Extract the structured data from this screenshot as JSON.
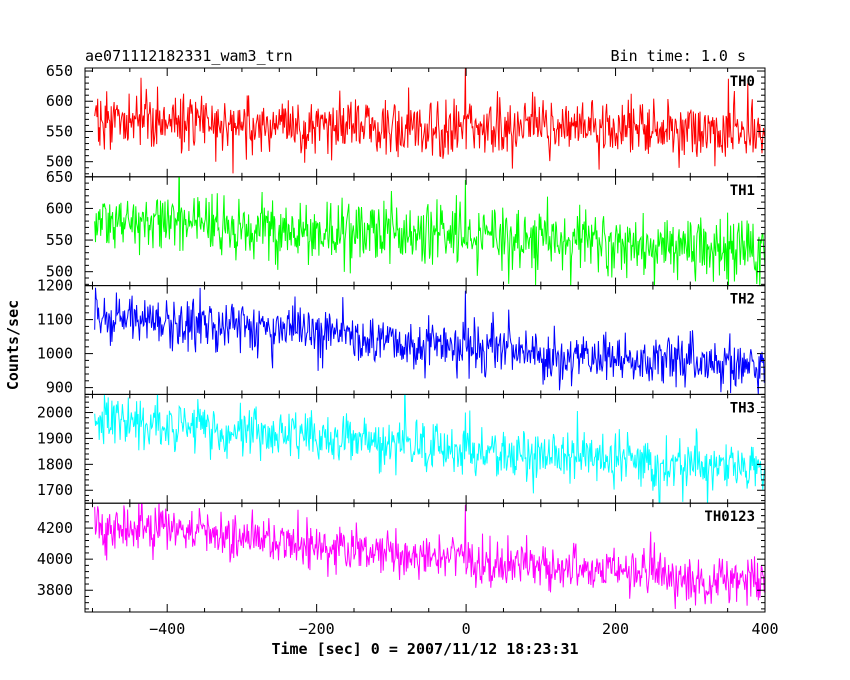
{
  "header": {
    "title": "ae071112182331_wam3_trn",
    "bin_time": "Bin time: 1.0 s"
  },
  "chart_data": {
    "type": "line",
    "title": "ae071112182331_wam3_trn",
    "subtitle": "Bin time: 1.0 s",
    "xlabel": "Time [sec] 0 = 2007/11/12 18:23:31",
    "ylabel": "Counts/sec",
    "xlim": [
      -510,
      400
    ],
    "x_ticks": [
      -400,
      -200,
      0,
      200,
      400
    ],
    "bin_time_s": 1.0,
    "grid": false,
    "legend": "none",
    "panels": [
      {
        "name": "TH0",
        "color": "#ff0000",
        "ylim": [
          475,
          655
        ],
        "y_ticks": [
          500,
          550,
          600,
          650
        ],
        "trend": [
          [
            -500,
            572
          ],
          [
            -200,
            560
          ],
          [
            0,
            558
          ],
          [
            200,
            553
          ],
          [
            400,
            548
          ]
        ],
        "scatter_sd": 24,
        "spikes": [
          [
            -1,
            660
          ]
        ]
      },
      {
        "name": "TH1",
        "color": "#00ff00",
        "ylim": [
          478,
          650
        ],
        "y_ticks": [
          500,
          550,
          600,
          650
        ],
        "trend": [
          [
            -500,
            585
          ],
          [
            -400,
            580
          ],
          [
            -200,
            565
          ],
          [
            0,
            556
          ],
          [
            200,
            545
          ],
          [
            400,
            530
          ]
        ],
        "scatter_sd": 24,
        "spikes": [
          [
            -1,
            645
          ]
        ]
      },
      {
        "name": "TH2",
        "color": "#0000ff",
        "ylim": [
          880,
          1200
        ],
        "y_ticks": [
          900,
          1000,
          1100,
          1200
        ],
        "trend": [
          [
            -500,
            1100
          ],
          [
            -400,
            1095
          ],
          [
            -200,
            1060
          ],
          [
            0,
            1015
          ],
          [
            200,
            990
          ],
          [
            400,
            960
          ]
        ],
        "scatter_sd": 38,
        "spikes": [
          [
            -1,
            1185
          ]
        ]
      },
      {
        "name": "TH3",
        "color": "#00ffff",
        "ylim": [
          1650,
          2070
        ],
        "y_ticks": [
          1700,
          1800,
          1900,
          2000
        ],
        "trend": [
          [
            -500,
            1965
          ],
          [
            -400,
            1955
          ],
          [
            -200,
            1900
          ],
          [
            0,
            1860
          ],
          [
            200,
            1810
          ],
          [
            400,
            1780
          ]
        ],
        "scatter_sd": 50,
        "spikes": [
          [
            -1,
            2000
          ]
        ]
      },
      {
        "name": "TH0123",
        "color": "#ff00ff",
        "ylim": [
          3660,
          4360
        ],
        "y_ticks": [
          3800,
          4000,
          4200
        ],
        "trend": [
          [
            -500,
            4210
          ],
          [
            -400,
            4190
          ],
          [
            -200,
            4090
          ],
          [
            0,
            3990
          ],
          [
            200,
            3920
          ],
          [
            400,
            3820
          ]
        ],
        "scatter_sd": 75,
        "spikes": [
          [
            -1,
            4350
          ]
        ]
      }
    ]
  }
}
